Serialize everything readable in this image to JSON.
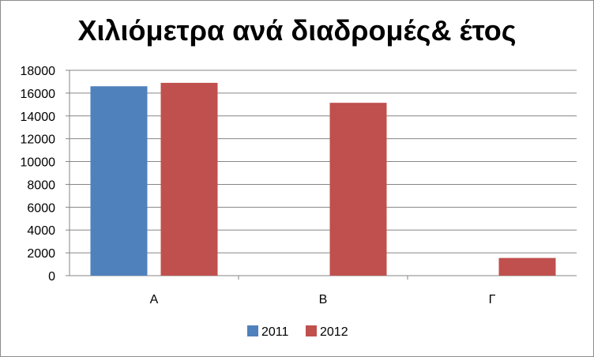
{
  "chart_data": {
    "type": "bar",
    "title": "Χιλιόμετρα ανά διαδρομές& έτος",
    "categories": [
      "Α",
      "Β",
      "Γ"
    ],
    "series": [
      {
        "name": "2011",
        "color": "#4f81bd",
        "values": [
          16600,
          0,
          0
        ]
      },
      {
        "name": "2012",
        "color": "#c0504d",
        "values": [
          16900,
          15150,
          1550
        ]
      }
    ],
    "ylim": [
      0,
      18000
    ],
    "yticks": [
      0,
      2000,
      4000,
      6000,
      8000,
      10000,
      12000,
      14000,
      16000,
      18000
    ],
    "grid": true,
    "legend": "bottom",
    "xlabel": "",
    "ylabel": ""
  }
}
